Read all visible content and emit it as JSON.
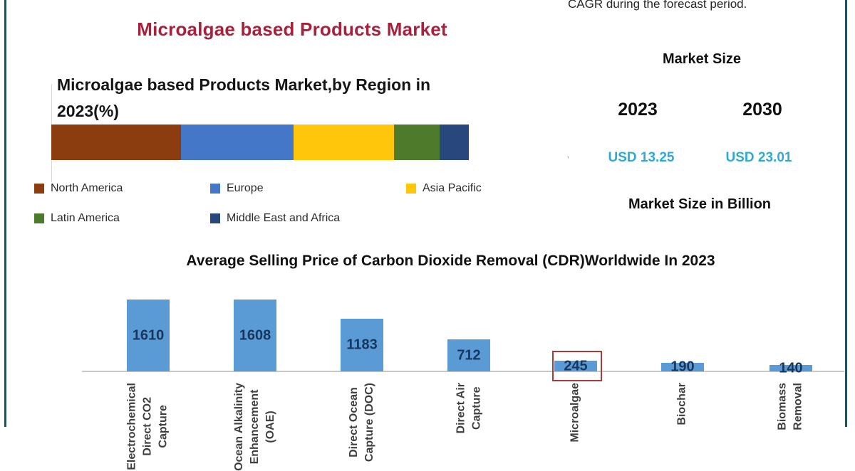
{
  "header": {
    "title": "Microalgae based Products Market"
  },
  "region_chart": {
    "title_display": "Microalgae based Products Market,by Region in\n2023(%)"
  },
  "market_panel": {
    "cagr_note": "CAGR during the forecast period.",
    "heading": "Market Size",
    "years": [
      "2023",
      "2030"
    ],
    "values": [
      "USD 13.25",
      "USD 23.01"
    ],
    "unit_note": "Market Size in Billion",
    "stray_mark": ","
  },
  "colors": {
    "frame": "#24505B",
    "main_title": "#A7203C",
    "usd_value": "#2EABD2",
    "price_bar": "#5B9BD5",
    "price_value_label": "#17375E",
    "highlight_box": "#A93A3A",
    "axis_line": "#C8C8C8"
  },
  "chart_data": [
    {
      "type": "bar",
      "subtype": "stacked-horizontal",
      "title": "Microalgae based Products Market,by Region in 2023(%)",
      "categories": [
        "North America",
        "Europe",
        "Asia Pacific",
        "Latin America",
        "Middle East and Africa"
      ],
      "values": [
        31,
        27,
        24,
        11,
        7
      ],
      "unit": "%",
      "colors": [
        "#8B3D0F",
        "#4577C8",
        "#FFC60B",
        "#4E7B2B",
        "#27477D"
      ],
      "legend_position": "bottom",
      "data_labels": false
    },
    {
      "type": "bar",
      "title": "Average Selling Price of Carbon Dioxide Removal (CDR)Worldwide In 2023",
      "categories": [
        "Electrochemical\nDirect CO2\nCapture",
        "Ocean Alkalinity\nEnhancement\n(OAE)",
        "Direct Ocean\nCapture (DOC)",
        "Direct Air\nCapture",
        "Microalgae",
        "Biochar",
        "Biomass\nRemoval"
      ],
      "values": [
        1610,
        1608,
        1183,
        712,
        245,
        190,
        140
      ],
      "bar_color": "#5B9BD5",
      "highlight_index": 4,
      "highlighted_category": "Microalgae",
      "ylim": [
        0,
        1700
      ],
      "grid": false,
      "data_labels": true,
      "xlabel": "",
      "ylabel": ""
    }
  ]
}
